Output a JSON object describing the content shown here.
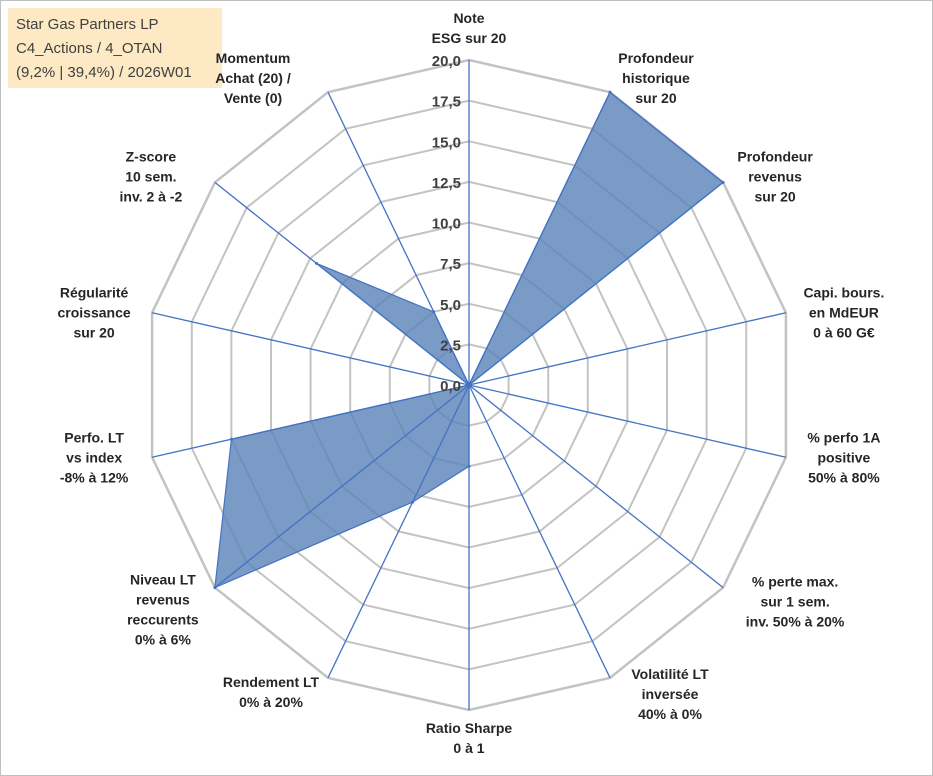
{
  "info": {
    "line1": "Star Gas Partners LP",
    "line2": "C4_Actions / 4_OTAN",
    "line3": "(9,2% | 39,4%) / 2026W01"
  },
  "colors": {
    "fill": "#5b85b8",
    "stroke": "#4472c4",
    "grid": "#c3c3c3",
    "box_bg": "#fde9c4"
  },
  "chart_data": {
    "type": "radar",
    "title": "Star Gas Partners LP",
    "rmin": 0,
    "rmax": 20,
    "tick_labels": [
      "0,0",
      "2,5",
      "5,0",
      "7,5",
      "10,0",
      "12,5",
      "15,0",
      "17,5",
      "20,0"
    ],
    "axes": [
      {
        "label": [
          "Note",
          "ESG sur 20"
        ],
        "value": 0
      },
      {
        "label": [
          "Profondeur",
          "historique",
          "sur 20"
        ],
        "value": 20
      },
      {
        "label": [
          "Profondeur",
          "revenus",
          "sur 20"
        ],
        "value": 20
      },
      {
        "label": [
          "Capi. bours.",
          "en MdEUR",
          "0 à 60 G€"
        ],
        "value": 0
      },
      {
        "label": [
          "% perfo 1A",
          "positive",
          "50% à 80%"
        ],
        "value": 0
      },
      {
        "label": [
          "% perte max.",
          "sur 1 sem.",
          "inv. 50% à 20%"
        ],
        "value": 0
      },
      {
        "label": [
          "Volatilité LT",
          "inversée",
          "40% à 0%"
        ],
        "value": 0
      },
      {
        "label": [
          "Ratio Sharpe",
          "0 à 1"
        ],
        "value": 5
      },
      {
        "label": [
          "Rendement LT",
          "0% à 20%"
        ],
        "value": 8
      },
      {
        "label": [
          "Niveau LT",
          "revenus",
          "reccurents",
          "0% à 6%"
        ],
        "value": 20
      },
      {
        "label": [
          "Perfo. LT",
          "vs index",
          "-8% à 12%"
        ],
        "value": 15
      },
      {
        "label": [
          "Régularité",
          "croissance",
          "sur 20"
        ],
        "value": 0
      },
      {
        "label": [
          "Z-score",
          "10 sem.",
          "inv. 2 à -2"
        ],
        "value": 12
      },
      {
        "label": [
          "Momentum",
          "Achat (20) /",
          "Vente (0)"
        ],
        "value": 5
      }
    ]
  }
}
